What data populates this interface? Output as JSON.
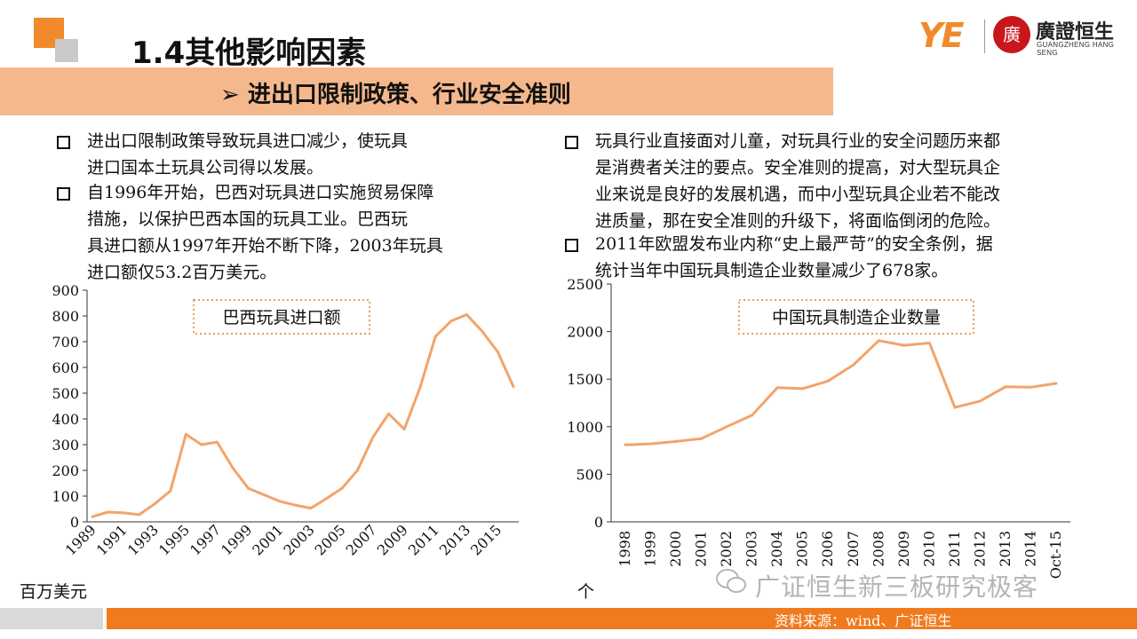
{
  "header": {
    "title": "1.4其他影响因素"
  },
  "banner": {
    "text": "➢ 进出口限制政策、行业安全准则"
  },
  "logo": {
    "cn": "廣證恒生",
    "en": "GUANGZHENG HANG SENG",
    "mark": "YE",
    "seal": "廣"
  },
  "left_bullets": [
    {
      "lines": [
        "进出口限制政策导致玩具进口减少，使玩具",
        "进口国本土玩具公司得以发展。"
      ]
    },
    {
      "lines": [
        "自1996年开始，巴西对玩具进口实施贸易保障",
        "措施，以保护巴西本国的玩具工业。巴西玩",
        "具进口额从1997年开始不断下降，2003年玩具",
        "进口额仅53.2百万美元。"
      ]
    }
  ],
  "right_bullets": [
    {
      "lines": [
        "玩具行业直接面对儿童，对玩具行业的安全问题历来都",
        "是消费者关注的要点。安全准则的提高，对大型玩具企",
        "业来说是良好的发展机遇，而中小型玩具企业若不能改",
        "进质量，那在安全准则的升级下，将面临倒闭的危险。"
      ]
    },
    {
      "lines": [
        "2011年欧盟发布业内称“史上最严苛”的安全条例，据",
        "统计当年中国玩具制造企业数量减少了678家。"
      ]
    }
  ],
  "chart_data": [
    {
      "type": "line",
      "title": "巴西玩具进口额",
      "unit_label": "百万美元",
      "color": "#f2a46a",
      "ylim": [
        0,
        900
      ],
      "yticks": [
        0,
        100,
        200,
        300,
        400,
        500,
        600,
        700,
        800,
        900
      ],
      "x": [
        1989,
        1990,
        1991,
        1992,
        1993,
        1994,
        1995,
        1996,
        1997,
        1998,
        1999,
        2000,
        2001,
        2002,
        2003,
        2004,
        2005,
        2006,
        2007,
        2008,
        2009,
        2010,
        2011,
        2012,
        2013,
        2014,
        2015,
        2016
      ],
      "values": [
        20,
        38,
        35,
        28,
        70,
        120,
        340,
        300,
        310,
        210,
        130,
        105,
        80,
        65,
        53.2,
        90,
        130,
        200,
        330,
        420,
        360,
        520,
        720,
        780,
        805,
        740,
        660,
        525
      ],
      "xtick_labels": [
        "1989",
        "1991",
        "1993",
        "1995",
        "1997",
        "1999",
        "2001",
        "2003",
        "2005",
        "2007",
        "2009",
        "2011",
        "2013",
        "2015"
      ]
    },
    {
      "type": "line",
      "title": "中国玩具制造企业数量",
      "unit_label": "个",
      "color": "#f2a46a",
      "ylim": [
        0,
        2500
      ],
      "yticks": [
        0,
        500,
        1000,
        1500,
        2000,
        2500
      ],
      "categories": [
        "1998",
        "1999",
        "2000",
        "2001",
        "2002",
        "2003",
        "2004",
        "2005",
        "2006",
        "2007",
        "2008",
        "2009",
        "2010",
        "2011",
        "2012",
        "2013",
        "2014",
        "Oct-15"
      ],
      "values": [
        810,
        820,
        845,
        875,
        1000,
        1120,
        1410,
        1400,
        1480,
        1650,
        1905,
        1855,
        1880,
        1202,
        1270,
        1420,
        1415,
        1455
      ]
    }
  ],
  "footer": {
    "source": "资料来源：wind、广证恒生",
    "watermark": "广证恒生新三板研究极客"
  }
}
